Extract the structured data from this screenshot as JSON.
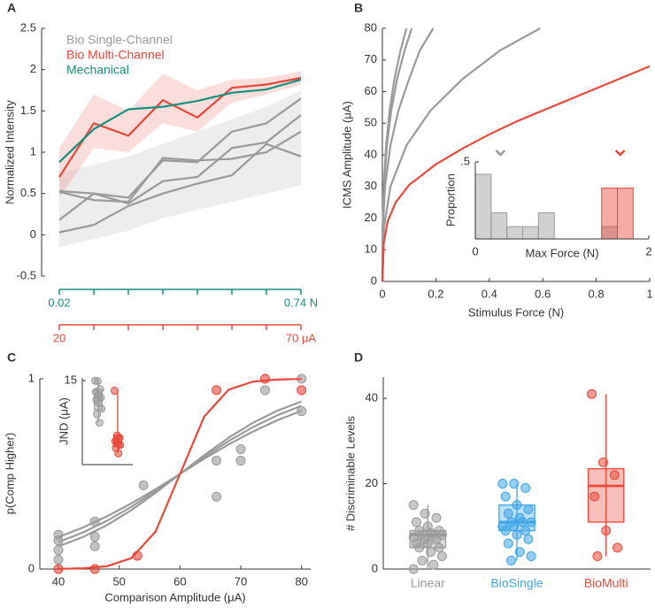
{
  "chart_data": [
    {
      "type": "line",
      "label": "A",
      "ylabel": "Normalized Intensity",
      "ylim": [
        -0.5,
        2.5
      ],
      "yticks": [
        -0.5,
        0,
        0.5,
        1,
        1.5,
        2,
        2.5
      ],
      "categories": [
        "0.02",
        null,
        null,
        null,
        null,
        null,
        null,
        "0.74 N"
      ],
      "categories_color": "#16907e",
      "categories2": [
        "20",
        null,
        null,
        null,
        null,
        null,
        null,
        "70 μA"
      ],
      "categories2_color": "#e8483a",
      "series": [
        {
          "name": "Bio Single-Channel",
          "color": "#9a9a9a",
          "lines": [
            [
              0.53,
              0.5,
              0.38,
              0.65,
              0.7,
              1.05,
              1.12,
              1.45
            ],
            [
              0.18,
              0.5,
              0.45,
              0.9,
              0.88,
              1.25,
              1.35,
              1.65
            ],
            [
              0.03,
              0.12,
              0.35,
              0.5,
              0.62,
              0.72,
              1.1,
              0.95
            ],
            [
              0.52,
              0.42,
              0.4,
              0.93,
              0.9,
              0.92,
              1.0,
              1.25
            ]
          ],
          "band": {
            "lower": [
              -0.15,
              -0.05,
              0.05,
              0.2,
              0.3,
              0.4,
              0.5,
              0.6
            ],
            "upper": [
              0.75,
              0.85,
              0.95,
              1.1,
              1.25,
              1.4,
              1.55,
              1.75
            ]
          }
        },
        {
          "name": "Bio Multi-Channel",
          "color": "#e8483a",
          "values": [
            0.7,
            1.35,
            1.2,
            1.63,
            1.42,
            1.78,
            1.82,
            1.9
          ],
          "band": {
            "lower": [
              0.45,
              1.05,
              1.0,
              1.35,
              1.25,
              1.6,
              1.7,
              1.82
            ],
            "upper": [
              1.05,
              1.7,
              1.5,
              1.95,
              1.75,
              1.88,
              1.9,
              1.98
            ]
          }
        },
        {
          "name": "Mechanical",
          "color": "#16907e",
          "values": [
            0.88,
            1.28,
            1.52,
            1.55,
            1.62,
            1.72,
            1.76,
            1.88
          ]
        }
      ]
    },
    {
      "type": "line",
      "label": "B",
      "xlabel": "Stimulus Force (N)",
      "ylabel": "ICMS Amplitude (μA)",
      "xlim": [
        0,
        1
      ],
      "ylim": [
        0,
        80
      ],
      "xticks": [
        0,
        0.2,
        0.4,
        0.6,
        0.8,
        1
      ],
      "yticks": [
        0,
        10,
        20,
        30,
        40,
        50,
        60,
        70,
        80
      ],
      "series": [
        {
          "color": "#9a9a9a",
          "x": [
            0,
            0.006,
            0.03,
            0.09,
            0.18,
            0.3,
            0.44,
            0.59
          ],
          "values": [
            0,
            17,
            30,
            43,
            54,
            64,
            73,
            80
          ]
        },
        {
          "color": "#9a9a9a",
          "x": [
            0,
            0.002,
            0.01,
            0.03,
            0.06,
            0.1,
            0.14,
            0.19
          ],
          "values": [
            0,
            17,
            30,
            43,
            54,
            64,
            73,
            80
          ]
        },
        {
          "color": "#9a9a9a",
          "x": [
            0,
            0.001,
            0.006,
            0.017,
            0.033,
            0.055,
            0.083,
            0.11
          ],
          "values": [
            0,
            17,
            30,
            43,
            54,
            64,
            73,
            80
          ]
        },
        {
          "color": "#9a9a9a",
          "x": [
            0,
            0.001,
            0.005,
            0.014,
            0.027,
            0.045,
            0.068,
            0.09
          ],
          "values": [
            0,
            17,
            30,
            43,
            54,
            64,
            73,
            80
          ]
        },
        {
          "color": "#e8483a",
          "x": [
            0,
            0.005,
            0.02,
            0.05,
            0.1,
            0.2,
            0.3,
            0.4,
            0.5,
            0.6,
            0.7,
            0.8,
            0.9,
            1
          ],
          "values": [
            0,
            12,
            19,
            25,
            30.5,
            37,
            42,
            46.5,
            50.5,
            54,
            57.5,
            61,
            64.5,
            68
          ]
        }
      ]
    },
    {
      "type": "histogram",
      "xlabel": "Max Force (N)",
      "ylabel": "Proportion",
      "xlim": [
        0,
        2
      ],
      "ylim": [
        0,
        0.5
      ],
      "xticks": [
        0,
        2
      ],
      "yticks": [
        {
          "value": 0.5,
          "label": ".5"
        }
      ],
      "series": [
        {
          "color": "#9a9a9a",
          "bins": [
            0,
            0.182,
            0.364,
            0.546,
            0.728,
            0.91,
            1.092,
            1.274,
            1.456,
            1.638
          ],
          "counts": [
            0.42,
            0.17,
            0.08,
            0.08,
            0.17,
            0,
            0,
            0,
            0.08
          ],
          "marker": 0.29
        },
        {
          "color": "#e8483a",
          "bins": [
            1.456,
            1.638,
            1.82
          ],
          "counts": [
            0.33,
            0.33
          ],
          "marker": 1.67
        }
      ]
    },
    {
      "type": "scatter",
      "label": "C",
      "xlabel": "Comparison Amplitude (μA)",
      "ylabel": "p(Comp Higher)",
      "xlim": [
        37,
        81.5
      ],
      "ylim": [
        0,
        1
      ],
      "xticks": [
        40,
        50,
        60,
        70,
        80
      ],
      "yticks": [
        0,
        1
      ],
      "curve_x": [
        40,
        44,
        48,
        52,
        56,
        60,
        64,
        68,
        72,
        76,
        80
      ],
      "curves": [
        {
          "color": "#9a9a9a",
          "values": [
            0.168,
            0.218,
            0.277,
            0.345,
            0.42,
            0.5,
            0.58,
            0.655,
            0.723,
            0.782,
            0.832
          ]
        },
        {
          "color": "#9a9a9a",
          "values": [
            0.142,
            0.192,
            0.254,
            0.327,
            0.411,
            0.5,
            0.589,
            0.673,
            0.746,
            0.808,
            0.858
          ]
        },
        {
          "color": "#9a9a9a",
          "values": [
            0.119,
            0.168,
            0.231,
            0.31,
            0.401,
            0.5,
            0.599,
            0.69,
            0.769,
            0.832,
            0.881
          ]
        },
        {
          "color": "#e8483a",
          "values": [
            0.001,
            0.004,
            0.015,
            0.057,
            0.198,
            0.5,
            0.802,
            0.943,
            0.985,
            0.996,
            0.999
          ]
        }
      ],
      "series": [
        {
          "color": "#9a9a9a",
          "x": [
            40,
            40,
            40,
            40,
            46,
            46,
            46,
            54,
            66,
            66,
            70,
            70,
            74,
            80,
            80
          ],
          "values": [
            0.18,
            0.15,
            0.1,
            0.05,
            0.25,
            0.17,
            0.12,
            0.44,
            0.57,
            0.38,
            0.63,
            0.57,
            0.94,
            1,
            0.83
          ]
        },
        {
          "color": "#e8483a",
          "x": [
            40,
            46,
            53,
            66,
            74,
            80
          ],
          "values": [
            0,
            0,
            0.07,
            0.94,
            1,
            0.94
          ]
        }
      ]
    },
    {
      "type": "box",
      "ylabel": "JND (μA)",
      "ylim": [
        0,
        15.5
      ],
      "yticks": [
        15
      ],
      "series": [
        {
          "color": "#9a9a9a",
          "box": {
            "min": 7.5,
            "q1": 9.8,
            "median": 12,
            "q3": 13.4,
            "max": 15
          },
          "points": [
            15,
            14.9,
            13.5,
            13,
            12.4,
            12,
            11.6,
            11,
            10,
            9,
            7.5
          ]
        },
        {
          "color": "#e8483a",
          "box": {
            "min": 2,
            "q1": 3.2,
            "median": 4,
            "q3": 5.2,
            "max": 13.2
          },
          "points": [
            13.2,
            5.2,
            4.8,
            4.2,
            4,
            3.5,
            3,
            2
          ]
        }
      ]
    },
    {
      "type": "box",
      "label": "D",
      "ylabel": "# Discriminable Levels",
      "ylim": [
        0,
        45
      ],
      "yticks": [
        0,
        20,
        40
      ],
      "categories": [
        "Linear",
        "BioSingle",
        "BioMulti"
      ],
      "series": [
        {
          "color": "#9a9a9a",
          "box": {
            "min": 0,
            "q1": 5,
            "median": 8,
            "q3": 9,
            "max": 15
          },
          "points": [
            15,
            13,
            12,
            11,
            10,
            9,
            9,
            8.5,
            8,
            8,
            8,
            7.5,
            7,
            7,
            6,
            6,
            5,
            5,
            4,
            3,
            2,
            1,
            0
          ]
        },
        {
          "color": "#3ea6e8",
          "box": {
            "min": 2,
            "q1": 9,
            "median": 11,
            "q3": 15,
            "max": 20
          },
          "points": [
            20,
            20,
            19,
            17,
            15,
            14,
            13,
            12,
            11,
            11,
            11,
            10,
            10,
            9,
            9,
            8,
            7,
            6,
            4,
            3,
            2
          ]
        },
        {
          "color": "#e8483a",
          "box": {
            "min": 3,
            "q1": 11,
            "median": 19.5,
            "q3": 23.5,
            "max": 41
          },
          "points": [
            41,
            25,
            22,
            17,
            9,
            5,
            3
          ]
        }
      ]
    }
  ]
}
